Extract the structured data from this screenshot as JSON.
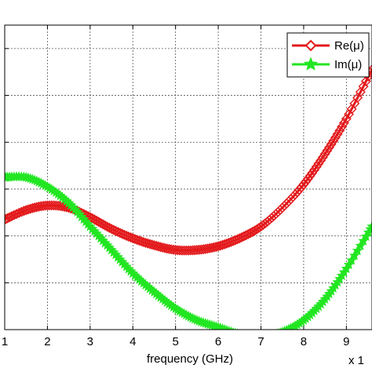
{
  "chart_data": {
    "type": "line",
    "title": "",
    "xlabel": "frequency (GHz)",
    "ylabel": "",
    "x_multiplier_label": "x 1",
    "xlim": [
      1,
      9.6
    ],
    "ylim": [
      0,
      6.5
    ],
    "x_ticks": [
      1,
      2,
      3,
      4,
      5,
      6,
      7,
      8,
      9
    ],
    "y_gridlines": [
      1,
      2,
      3,
      4,
      5,
      6
    ],
    "grid": true,
    "legend_position": "top-right",
    "series": [
      {
        "name": "Re(μ)",
        "color": "#e31a1c",
        "marker": "diamond",
        "x": [
          1.0,
          1.5,
          2.0,
          2.5,
          3.0,
          3.5,
          4.0,
          4.5,
          5.0,
          5.5,
          6.0,
          6.5,
          7.0,
          7.5,
          8.0,
          8.5,
          9.0,
          9.6
        ],
        "y": [
          2.35,
          2.55,
          2.65,
          2.6,
          2.4,
          2.15,
          1.95,
          1.8,
          1.7,
          1.7,
          1.78,
          1.95,
          2.2,
          2.6,
          3.1,
          3.75,
          4.5,
          5.55
        ]
      },
      {
        "name": "Im(μ)",
        "color": "#22e622",
        "marker": "star",
        "x": [
          1.0,
          1.5,
          2.0,
          2.5,
          3.0,
          3.5,
          4.0,
          4.5,
          5.0,
          5.5,
          6.0,
          6.5,
          7.0,
          7.5,
          8.0,
          8.5,
          9.0,
          9.6
        ],
        "y": [
          3.25,
          3.25,
          3.05,
          2.7,
          2.2,
          1.7,
          1.2,
          0.8,
          0.45,
          0.2,
          0.05,
          -0.1,
          -0.15,
          -0.05,
          0.2,
          0.65,
          1.3,
          2.2
        ]
      }
    ]
  }
}
